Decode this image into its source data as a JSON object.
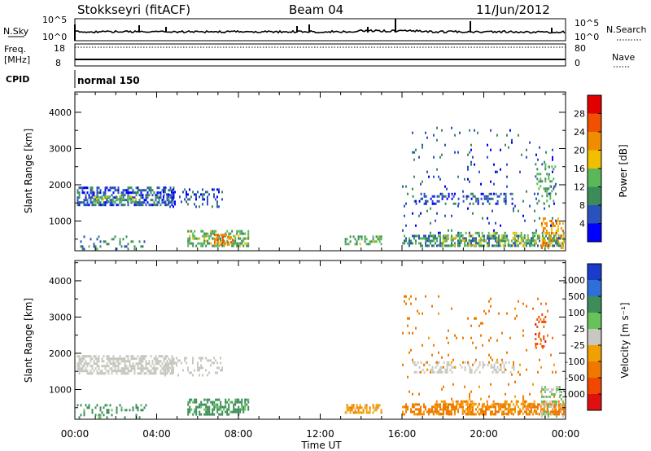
{
  "header": {
    "station": "Stokkseyri (fitACF)",
    "beam": "Beam 04",
    "date": "11/Jun/2012"
  },
  "strip_labels": {
    "nsky": "N.Sky",
    "nsearch": "N.Search",
    "freq_line1": "Freq.",
    "freq_line2": "[MHz]",
    "nave": "Nave",
    "cpid": "CPID",
    "cpid_value": "normal 150",
    "nsky_ticks": [
      "10^5",
      "10^0"
    ],
    "nsearch_ticks": [
      "10^5",
      "10^0"
    ],
    "freq_ticks": [
      "18",
      "8"
    ],
    "nave_ticks": [
      "80",
      "0"
    ]
  },
  "colors": {
    "power": [
      "#0000ff",
      "#2a52be",
      "#3c8c5a",
      "#5ab85a",
      "#f0c000",
      "#f08c00",
      "#f05000",
      "#e00000"
    ],
    "velocity": [
      "#1a3ccc",
      "#2e6fd8",
      "#3d8c5a",
      "#66c35a",
      "#c8c8c0",
      "#f0a000",
      "#f07800",
      "#f04800",
      "#e01010"
    ]
  },
  "chart_data": [
    {
      "type": "heatmap",
      "panel": "power",
      "xlabel": "Time UT",
      "ylabel": "Slant Range [km]",
      "xlim": [
        0,
        24
      ],
      "ylim": [
        180,
        4560
      ],
      "yticks": [
        "1000",
        "2000",
        "3000",
        "4000"
      ],
      "xticks": [
        "00:00",
        "04:00",
        "08:00",
        "12:00",
        "16:00",
        "20:00",
        "00:00"
      ],
      "colorbar_label": "Power [dB]",
      "colorbar_ticks": [
        "4",
        "8",
        "12",
        "16",
        "20",
        "24",
        "28"
      ],
      "colorbar_range": [
        0,
        30
      ],
      "regions": [
        {
          "t0": 0.1,
          "t1": 4.8,
          "r0": 1450,
          "r1": 1950,
          "v": 6,
          "density": 0.55
        },
        {
          "t0": 0.8,
          "t1": 3.0,
          "r0": 1500,
          "r1": 1700,
          "v": 13,
          "density": 0.45
        },
        {
          "t0": 4.3,
          "t1": 7.2,
          "r0": 1400,
          "r1": 1900,
          "v": 5,
          "density": 0.25
        },
        {
          "t0": 0.1,
          "t1": 3.5,
          "r0": 250,
          "r1": 600,
          "v": 8,
          "density": 0.18
        },
        {
          "t0": 5.5,
          "t1": 8.5,
          "r0": 280,
          "r1": 750,
          "v": 12,
          "density": 0.5
        },
        {
          "t0": 6.8,
          "t1": 7.8,
          "r0": 350,
          "r1": 650,
          "v": 22,
          "density": 0.45
        },
        {
          "t0": 13.2,
          "t1": 15.0,
          "r0": 350,
          "r1": 600,
          "v": 12,
          "density": 0.45
        },
        {
          "t0": 16.0,
          "t1": 23.9,
          "r0": 300,
          "r1": 620,
          "v": 9,
          "density": 0.5
        },
        {
          "t0": 17.5,
          "t1": 23.9,
          "r0": 300,
          "r1": 700,
          "v": 14,
          "density": 0.3
        },
        {
          "t0": 22.8,
          "t1": 23.9,
          "r0": 250,
          "r1": 1100,
          "v": 20,
          "density": 0.35
        },
        {
          "t0": 16.5,
          "t1": 21.5,
          "r0": 1480,
          "r1": 1780,
          "v": 5,
          "density": 0.3
        },
        {
          "t0": 16.0,
          "t1": 23.5,
          "r0": 700,
          "r1": 3600,
          "v": 6,
          "density": 0.035
        },
        {
          "t0": 22.5,
          "t1": 23.5,
          "r0": 1500,
          "r1": 2600,
          "v": 11,
          "density": 0.25
        }
      ]
    },
    {
      "type": "heatmap",
      "panel": "velocity",
      "xlabel": "Time UT",
      "ylabel": "Slant Range [km]",
      "xlim": [
        0,
        24
      ],
      "ylim": [
        180,
        4560
      ],
      "yticks": [
        "1000",
        "2000",
        "3000",
        "4000"
      ],
      "xticks": [
        "00:00",
        "04:00",
        "08:00",
        "12:00",
        "16:00",
        "20:00",
        "00:00"
      ],
      "colorbar_label": "Velocity [m s⁻¹]",
      "colorbar_ticks": [
        "1000",
        "500",
        "100",
        "25",
        "-25",
        "-100",
        "-500",
        "-1000"
      ],
      "colorbar_range": [
        -1250,
        1250
      ],
      "regions": [
        {
          "t0": 0.1,
          "t1": 4.8,
          "r0": 1450,
          "r1": 1950,
          "v": 0,
          "density": 0.6
        },
        {
          "t0": 4.3,
          "t1": 7.2,
          "r0": 1400,
          "r1": 1900,
          "v": 0,
          "density": 0.25
        },
        {
          "t0": 0.1,
          "t1": 3.5,
          "r0": 250,
          "r1": 600,
          "v": 150,
          "density": 0.2
        },
        {
          "t0": 5.5,
          "t1": 8.5,
          "r0": 280,
          "r1": 750,
          "v": 170,
          "density": 0.5
        },
        {
          "t0": 13.2,
          "t1": 15.0,
          "r0": 350,
          "r1": 600,
          "v": -80,
          "density": 0.5
        },
        {
          "t0": 16.0,
          "t1": 23.9,
          "r0": 300,
          "r1": 620,
          "v": -150,
          "density": 0.55
        },
        {
          "t0": 17.5,
          "t1": 23.9,
          "r0": 300,
          "r1": 700,
          "v": -120,
          "density": 0.3
        },
        {
          "t0": 22.8,
          "t1": 23.9,
          "r0": 250,
          "r1": 1100,
          "v": 30,
          "density": 0.35
        },
        {
          "t0": 16.5,
          "t1": 21.5,
          "r0": 1480,
          "r1": 1780,
          "v": 0,
          "density": 0.3
        },
        {
          "t0": 16.0,
          "t1": 23.5,
          "r0": 700,
          "r1": 3600,
          "v": -200,
          "density": 0.035
        },
        {
          "t0": 22.5,
          "t1": 23.0,
          "r0": 2200,
          "r1": 3100,
          "v": -800,
          "density": 0.3
        }
      ]
    }
  ]
}
